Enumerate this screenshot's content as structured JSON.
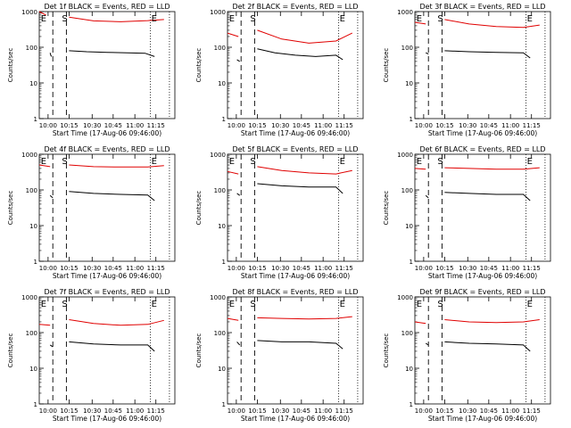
{
  "chart_data": [
    {
      "type": "line",
      "title": "Det 1f BLACK = Events, RED = LLD",
      "ylabel": "Counts/sec",
      "xlabel": "Start Time (17-Aug-06 09:46:00)",
      "y_scale": "log",
      "ylim": [
        1,
        1000
      ],
      "x_ticks": [
        "10:00",
        "10:15",
        "10:30",
        "10:45",
        "11:00",
        "11:15"
      ],
      "markers": [
        "E",
        "S",
        "E"
      ],
      "series": [
        {
          "color": "#000000",
          "values": [
            [
              0.08,
              70
            ],
            [
              0.085,
              60
            ],
            [
              0.09,
              55
            ],
            [
              0.12,
              null
            ],
            [
              0.22,
              80
            ],
            [
              0.35,
              75
            ],
            [
              0.5,
              72
            ],
            [
              0.65,
              70
            ],
            [
              0.78,
              68
            ],
            [
              0.85,
              55
            ]
          ]
        },
        {
          "color": "#e00000",
          "values": [
            [
              0.0,
              1000
            ],
            [
              0.05,
              800
            ],
            [
              0.12,
              null
            ],
            [
              0.22,
              700
            ],
            [
              0.4,
              550
            ],
            [
              0.6,
              520
            ],
            [
              0.8,
              560
            ],
            [
              0.92,
              600
            ]
          ]
        }
      ]
    },
    {
      "type": "line",
      "title": "Det 2f BLACK = Events, RED = LLD",
      "ylabel": "Counts/sec",
      "xlabel": "Start Time (17-Aug-06 09:46:00)",
      "y_scale": "log",
      "ylim": [
        1,
        1000
      ],
      "x_ticks": [
        "10:00",
        "10:15",
        "10:30",
        "10:45",
        "11:00",
        "11:15"
      ],
      "markers": [
        "E",
        "S",
        "E"
      ],
      "series": [
        {
          "color": "#000000",
          "values": [
            [
              0.07,
              45
            ],
            [
              0.09,
              40
            ],
            [
              0.12,
              null
            ],
            [
              0.22,
              90
            ],
            [
              0.35,
              70
            ],
            [
              0.5,
              60
            ],
            [
              0.65,
              55
            ],
            [
              0.8,
              60
            ],
            [
              0.85,
              45
            ]
          ]
        },
        {
          "color": "#e00000",
          "values": [
            [
              0.0,
              250
            ],
            [
              0.08,
              200
            ],
            [
              0.12,
              null
            ],
            [
              0.22,
              300
            ],
            [
              0.4,
              170
            ],
            [
              0.6,
              130
            ],
            [
              0.8,
              150
            ],
            [
              0.92,
              250
            ]
          ]
        }
      ]
    },
    {
      "type": "line",
      "title": "Det 3f BLACK = Events, RED = LLD",
      "ylabel": "Counts/sec",
      "xlabel": "Start Time (17-Aug-06 09:46:00)",
      "y_scale": "log",
      "ylim": [
        1,
        1000
      ],
      "x_ticks": [
        "10:00",
        "10:15",
        "10:30",
        "10:45",
        "11:00",
        "11:15"
      ],
      "markers": [
        "E",
        "S",
        "E"
      ],
      "series": [
        {
          "color": "#000000",
          "values": [
            [
              0.08,
              70
            ],
            [
              0.1,
              65
            ],
            [
              0.12,
              null
            ],
            [
              0.22,
              80
            ],
            [
              0.4,
              75
            ],
            [
              0.6,
              72
            ],
            [
              0.8,
              70
            ],
            [
              0.85,
              50
            ]
          ]
        },
        {
          "color": "#e00000",
          "values": [
            [
              0.0,
              500
            ],
            [
              0.08,
              450
            ],
            [
              0.12,
              null
            ],
            [
              0.22,
              600
            ],
            [
              0.4,
              450
            ],
            [
              0.6,
              380
            ],
            [
              0.8,
              360
            ],
            [
              0.92,
              420
            ]
          ]
        }
      ]
    },
    {
      "type": "line",
      "title": "Det 4f BLACK = Events, RED = LLD",
      "ylabel": "Counts/sec",
      "xlabel": "Start Time (17-Aug-06 09:46:00)",
      "y_scale": "log",
      "ylim": [
        1,
        1000
      ],
      "x_ticks": [
        "10:00",
        "10:15",
        "10:30",
        "10:45",
        "11:00",
        "11:15"
      ],
      "markers": [
        "E",
        "S",
        "E"
      ],
      "series": [
        {
          "color": "#000000",
          "values": [
            [
              0.08,
              70
            ],
            [
              0.1,
              60
            ],
            [
              0.12,
              null
            ],
            [
              0.22,
              90
            ],
            [
              0.4,
              80
            ],
            [
              0.6,
              75
            ],
            [
              0.8,
              72
            ],
            [
              0.85,
              50
            ]
          ]
        },
        {
          "color": "#e00000",
          "values": [
            [
              0.0,
              500
            ],
            [
              0.08,
              450
            ],
            [
              0.12,
              null
            ],
            [
              0.22,
              500
            ],
            [
              0.4,
              450
            ],
            [
              0.6,
              440
            ],
            [
              0.8,
              440
            ],
            [
              0.92,
              480
            ]
          ]
        }
      ]
    },
    {
      "type": "line",
      "title": "Det 5f BLACK = Events, RED = LLD",
      "ylabel": "Counts/sec",
      "xlabel": "Start Time (17-Aug-06 09:46:00)",
      "y_scale": "log",
      "ylim": [
        1,
        1000
      ],
      "x_ticks": [
        "10:00",
        "10:15",
        "10:30",
        "10:45",
        "11:00",
        "11:15"
      ],
      "markers": [
        "E",
        "S",
        "E"
      ],
      "series": [
        {
          "color": "#000000",
          "values": [
            [
              0.07,
              80
            ],
            [
              0.09,
              70
            ],
            [
              0.12,
              null
            ],
            [
              0.22,
              150
            ],
            [
              0.4,
              130
            ],
            [
              0.6,
              120
            ],
            [
              0.8,
              120
            ],
            [
              0.85,
              80
            ]
          ]
        },
        {
          "color": "#e00000",
          "values": [
            [
              0.0,
              330
            ],
            [
              0.08,
              280
            ],
            [
              0.12,
              null
            ],
            [
              0.22,
              450
            ],
            [
              0.4,
              350
            ],
            [
              0.6,
              300
            ],
            [
              0.8,
              280
            ],
            [
              0.92,
              350
            ]
          ]
        }
      ]
    },
    {
      "type": "line",
      "title": "Det 6f BLACK = Events, RED = LLD",
      "ylabel": "Counts/sec",
      "xlabel": "Start Time (17-Aug-06 09:46:00)",
      "y_scale": "log",
      "ylim": [
        1,
        1000
      ],
      "x_ticks": [
        "10:00",
        "10:15",
        "10:30",
        "10:45",
        "11:00",
        "11:15"
      ],
      "markers": [
        "E",
        "S",
        "E"
      ],
      "series": [
        {
          "color": "#000000",
          "values": [
            [
              0.08,
              70
            ],
            [
              0.1,
              60
            ],
            [
              0.12,
              null
            ],
            [
              0.22,
              85
            ],
            [
              0.4,
              80
            ],
            [
              0.6,
              75
            ],
            [
              0.8,
              75
            ],
            [
              0.85,
              50
            ]
          ]
        },
        {
          "color": "#e00000",
          "values": [
            [
              0.0,
              400
            ],
            [
              0.08,
              380
            ],
            [
              0.12,
              null
            ],
            [
              0.22,
              420
            ],
            [
              0.4,
              400
            ],
            [
              0.6,
              380
            ],
            [
              0.8,
              380
            ],
            [
              0.92,
              420
            ]
          ]
        }
      ]
    },
    {
      "type": "line",
      "title": "Det 7f BLACK = Events, RED = LLD",
      "ylabel": "Counts/sec",
      "xlabel": "Start Time (17-Aug-06 09:46:00)",
      "y_scale": "log",
      "ylim": [
        1,
        1000
      ],
      "x_ticks": [
        "10:00",
        "10:15",
        "10:30",
        "10:45",
        "11:00",
        "11:15"
      ],
      "markers": [
        "E",
        "S",
        "E"
      ],
      "series": [
        {
          "color": "#000000",
          "values": [
            [
              0.08,
              45
            ],
            [
              0.1,
              40
            ],
            [
              0.12,
              null
            ],
            [
              0.22,
              55
            ],
            [
              0.4,
              48
            ],
            [
              0.6,
              45
            ],
            [
              0.8,
              45
            ],
            [
              0.85,
              30
            ]
          ]
        },
        {
          "color": "#e00000",
          "values": [
            [
              0.0,
              170
            ],
            [
              0.08,
              160
            ],
            [
              0.12,
              null
            ],
            [
              0.22,
              230
            ],
            [
              0.4,
              180
            ],
            [
              0.6,
              160
            ],
            [
              0.8,
              170
            ],
            [
              0.92,
              220
            ]
          ]
        }
      ]
    },
    {
      "type": "line",
      "title": "Det 8f BLACK = Events, RED = LLD",
      "ylabel": "Counts/sec",
      "xlabel": "Start Time (17-Aug-06 09:46:00)",
      "y_scale": "log",
      "ylim": [
        1,
        1000
      ],
      "x_ticks": [
        "10:00",
        "10:15",
        "10:30",
        "10:45",
        "11:00",
        "11:15"
      ],
      "markers": [
        "E",
        "S",
        "E"
      ],
      "series": [
        {
          "color": "#000000",
          "values": [
            [
              0.07,
              55
            ],
            [
              0.09,
              45
            ],
            [
              0.12,
              null
            ],
            [
              0.22,
              60
            ],
            [
              0.4,
              55
            ],
            [
              0.6,
              55
            ],
            [
              0.8,
              50
            ],
            [
              0.85,
              35
            ]
          ]
        },
        {
          "color": "#e00000",
          "values": [
            [
              0.0,
              250
            ],
            [
              0.08,
              220
            ],
            [
              0.12,
              null
            ],
            [
              0.22,
              260
            ],
            [
              0.4,
              250
            ],
            [
              0.6,
              240
            ],
            [
              0.8,
              250
            ],
            [
              0.92,
              280
            ]
          ]
        }
      ]
    },
    {
      "type": "line",
      "title": "Det 9f BLACK = Events, RED = LLD",
      "ylabel": "Counts/sec",
      "xlabel": "Start Time (17-Aug-06 09:46:00)",
      "y_scale": "log",
      "ylim": [
        1,
        1000
      ],
      "x_ticks": [
        "10:00",
        "10:15",
        "10:30",
        "10:45",
        "11:00",
        "11:15"
      ],
      "markers": [
        "E",
        "S",
        "E"
      ],
      "series": [
        {
          "color": "#000000",
          "values": [
            [
              0.08,
              50
            ],
            [
              0.1,
              45
            ],
            [
              0.12,
              null
            ],
            [
              0.22,
              55
            ],
            [
              0.4,
              50
            ],
            [
              0.6,
              48
            ],
            [
              0.8,
              45
            ],
            [
              0.85,
              30
            ]
          ]
        },
        {
          "color": "#e00000",
          "values": [
            [
              0.0,
              200
            ],
            [
              0.08,
              180
            ],
            [
              0.12,
              null
            ],
            [
              0.22,
              230
            ],
            [
              0.4,
              200
            ],
            [
              0.6,
              190
            ],
            [
              0.8,
              200
            ],
            [
              0.92,
              230
            ]
          ]
        }
      ]
    }
  ]
}
